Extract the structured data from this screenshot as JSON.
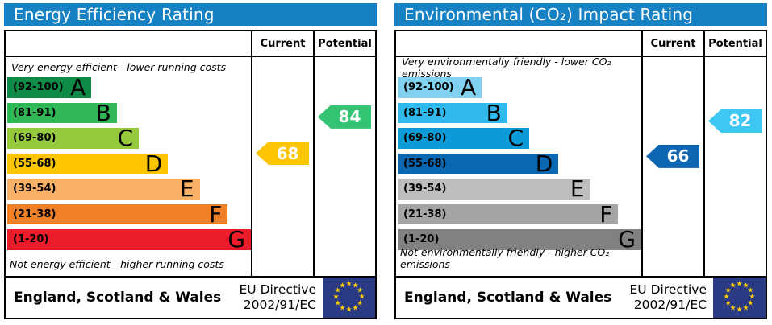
{
  "colors": {
    "header_bg": "#1681c3",
    "border": "#000000",
    "flag_bg": "#2a3a85",
    "flag_star": "#ffcc00"
  },
  "chart_data": [
    {
      "type": "bar",
      "title": "Energy Efficiency Rating",
      "columns": {
        "current": "Current",
        "potential": "Potential"
      },
      "top_caption": "Very energy efficient - lower running costs",
      "bottom_caption": "Not energy efficient - higher running costs",
      "bands": [
        {
          "label": "(92-100)",
          "letter": "A",
          "min": 92,
          "max": 100,
          "color": "#0e8b46",
          "width_pct": 34.5
        },
        {
          "label": "(81-91)",
          "letter": "B",
          "min": 81,
          "max": 91,
          "color": "#30b857",
          "width_pct": 45
        },
        {
          "label": "(69-80)",
          "letter": "C",
          "min": 69,
          "max": 80,
          "color": "#95ca3f",
          "width_pct": 54
        },
        {
          "label": "(55-68)",
          "letter": "D",
          "min": 55,
          "max": 68,
          "color": "#fdc400",
          "width_pct": 66
        },
        {
          "label": "(39-54)",
          "letter": "E",
          "min": 39,
          "max": 54,
          "color": "#f9b168",
          "width_pct": 79
        },
        {
          "label": "(21-38)",
          "letter": "F",
          "min": 21,
          "max": 38,
          "color": "#f08026",
          "width_pct": 90.5
        },
        {
          "label": "(1-20)",
          "letter": "G",
          "min": 1,
          "max": 20,
          "color": "#ed1c2b",
          "width_pct": 100
        }
      ],
      "current": {
        "value": 68,
        "color": "#fdc400"
      },
      "potential": {
        "value": 84,
        "color": "#33c373"
      },
      "footer": {
        "region": "England, Scotland & Wales",
        "directive_line1": "EU Directive",
        "directive_line2": "2002/91/EC",
        "flag": "eu-flag"
      }
    },
    {
      "type": "bar",
      "title": "Environmental (CO₂) Impact Rating",
      "columns": {
        "current": "Current",
        "potential": "Potential"
      },
      "top_caption": "Very environmentally friendly - lower CO₂ emissions",
      "bottom_caption": "Not environmentally friendly - higher CO₂ emissions",
      "bands": [
        {
          "label": "(92-100)",
          "letter": "A",
          "min": 92,
          "max": 100,
          "color": "#80d2f0",
          "width_pct": 34.5
        },
        {
          "label": "(81-91)",
          "letter": "B",
          "min": 81,
          "max": 91,
          "color": "#2fb9ed",
          "width_pct": 45
        },
        {
          "label": "(69-80)",
          "letter": "C",
          "min": 69,
          "max": 80,
          "color": "#0c9bd8",
          "width_pct": 54
        },
        {
          "label": "(55-68)",
          "letter": "D",
          "min": 55,
          "max": 68,
          "color": "#0a67b2",
          "width_pct": 66
        },
        {
          "label": "(39-54)",
          "letter": "E",
          "min": 39,
          "max": 54,
          "color": "#bebebe",
          "width_pct": 79
        },
        {
          "label": "(21-38)",
          "letter": "F",
          "min": 21,
          "max": 38,
          "color": "#a4a4a4",
          "width_pct": 90.5
        },
        {
          "label": "(1-20)",
          "letter": "G",
          "min": 1,
          "max": 20,
          "color": "#818181",
          "width_pct": 100
        }
      ],
      "current": {
        "value": 66,
        "color": "#0c66b4"
      },
      "potential": {
        "value": 82,
        "color": "#3fc7f4"
      },
      "footer": {
        "region": "England, Scotland & Wales",
        "directive_line1": "EU Directive",
        "directive_line2": "2002/91/EC",
        "flag": "eu-flag"
      }
    }
  ]
}
